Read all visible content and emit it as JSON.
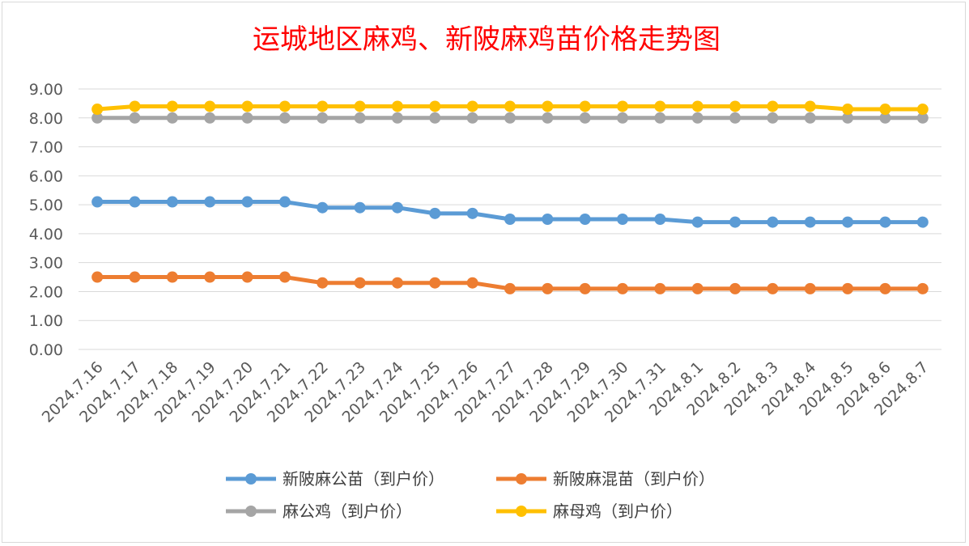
{
  "chart_data": {
    "type": "line",
    "title": "运城地区麻鸡、新陂麻鸡苗价格走势图",
    "xlabel": "",
    "ylabel": "",
    "ylim": [
      0,
      9
    ],
    "ytick_labels": [
      "0.00",
      "1.00",
      "2.00",
      "3.00",
      "4.00",
      "5.00",
      "6.00",
      "7.00",
      "8.00",
      "9.00"
    ],
    "grid": true,
    "legend_position": "bottom",
    "categories": [
      "2024.7.16",
      "2024.7.17",
      "2024.7.18",
      "2024.7.19",
      "2024.7.20",
      "2024.7.21",
      "2024.7.22",
      "2024.7.23",
      "2024.7.24",
      "2024.7.25",
      "2024.7.26",
      "2024.7.27",
      "2024.7.28",
      "2024.7.29",
      "2024.7.30",
      "2024.7.31",
      "2024.8.1",
      "2024.8.2",
      "2024.8.3",
      "2024.8.4",
      "2024.8.5",
      "2024.8.6",
      "2024.8.7"
    ],
    "series": [
      {
        "name": "新陂麻公苗（到户价）",
        "color": "#5b9bd5",
        "values": [
          5.1,
          5.1,
          5.1,
          5.1,
          5.1,
          5.1,
          4.9,
          4.9,
          4.9,
          4.7,
          4.7,
          4.5,
          4.5,
          4.5,
          4.5,
          4.5,
          4.4,
          4.4,
          4.4,
          4.4,
          4.4,
          4.4,
          4.4
        ]
      },
      {
        "name": "新陂麻混苗（到户价）",
        "color": "#ed7d31",
        "values": [
          2.5,
          2.5,
          2.5,
          2.5,
          2.5,
          2.5,
          2.3,
          2.3,
          2.3,
          2.3,
          2.3,
          2.1,
          2.1,
          2.1,
          2.1,
          2.1,
          2.1,
          2.1,
          2.1,
          2.1,
          2.1,
          2.1,
          2.1
        ]
      },
      {
        "name": "麻公鸡（到户价）",
        "color": "#a5a5a5",
        "values": [
          8.0,
          8.0,
          8.0,
          8.0,
          8.0,
          8.0,
          8.0,
          8.0,
          8.0,
          8.0,
          8.0,
          8.0,
          8.0,
          8.0,
          8.0,
          8.0,
          8.0,
          8.0,
          8.0,
          8.0,
          8.0,
          8.0,
          8.0
        ]
      },
      {
        "name": "麻母鸡（到户价）",
        "color": "#ffc000",
        "values": [
          8.3,
          8.4,
          8.4,
          8.4,
          8.4,
          8.4,
          8.4,
          8.4,
          8.4,
          8.4,
          8.4,
          8.4,
          8.4,
          8.4,
          8.4,
          8.4,
          8.4,
          8.4,
          8.4,
          8.4,
          8.3,
          8.3,
          8.3
        ]
      }
    ]
  }
}
